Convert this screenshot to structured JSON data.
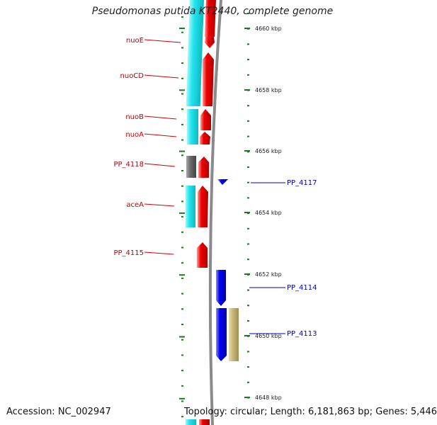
{
  "title": "Pseudomonas putida KT2440, complete genome",
  "footer": {
    "accession": "Accession: NC_002947",
    "topology": "Topology: circular; Length: 6,181,863 bp; Genes: 5,446"
  },
  "axis": {
    "ticks": [
      {
        "label": "4660 kbp"
      },
      {
        "label": "4658 kbp"
      },
      {
        "label": "4656 kbp"
      },
      {
        "label": "4654 kbp"
      },
      {
        "label": "4652 kbp"
      },
      {
        "label": "4650 kbp"
      },
      {
        "label": "4648 kbp"
      }
    ]
  },
  "colors": {
    "cog_cyan": "#22e4ee",
    "forward_red": "#ee0000",
    "reverse_blue": "#0000ee",
    "unassigned_gray": "#6b6b6b",
    "cog_khaki": "#c8b878",
    "tick_green": "#1a7a1a",
    "backbone_gray": "#8a8a8a"
  },
  "genes_left": [
    {
      "label": "nuoE"
    },
    {
      "label": "nuoCD"
    },
    {
      "label": "nuoB"
    },
    {
      "label": "nuoA"
    },
    {
      "label": "PP_4118"
    },
    {
      "label": "aceA"
    },
    {
      "label": "PP_4115"
    }
  ],
  "genes_right": [
    {
      "label": "PP_4117"
    },
    {
      "label": "PP_4114"
    },
    {
      "label": "PP_4113"
    }
  ]
}
